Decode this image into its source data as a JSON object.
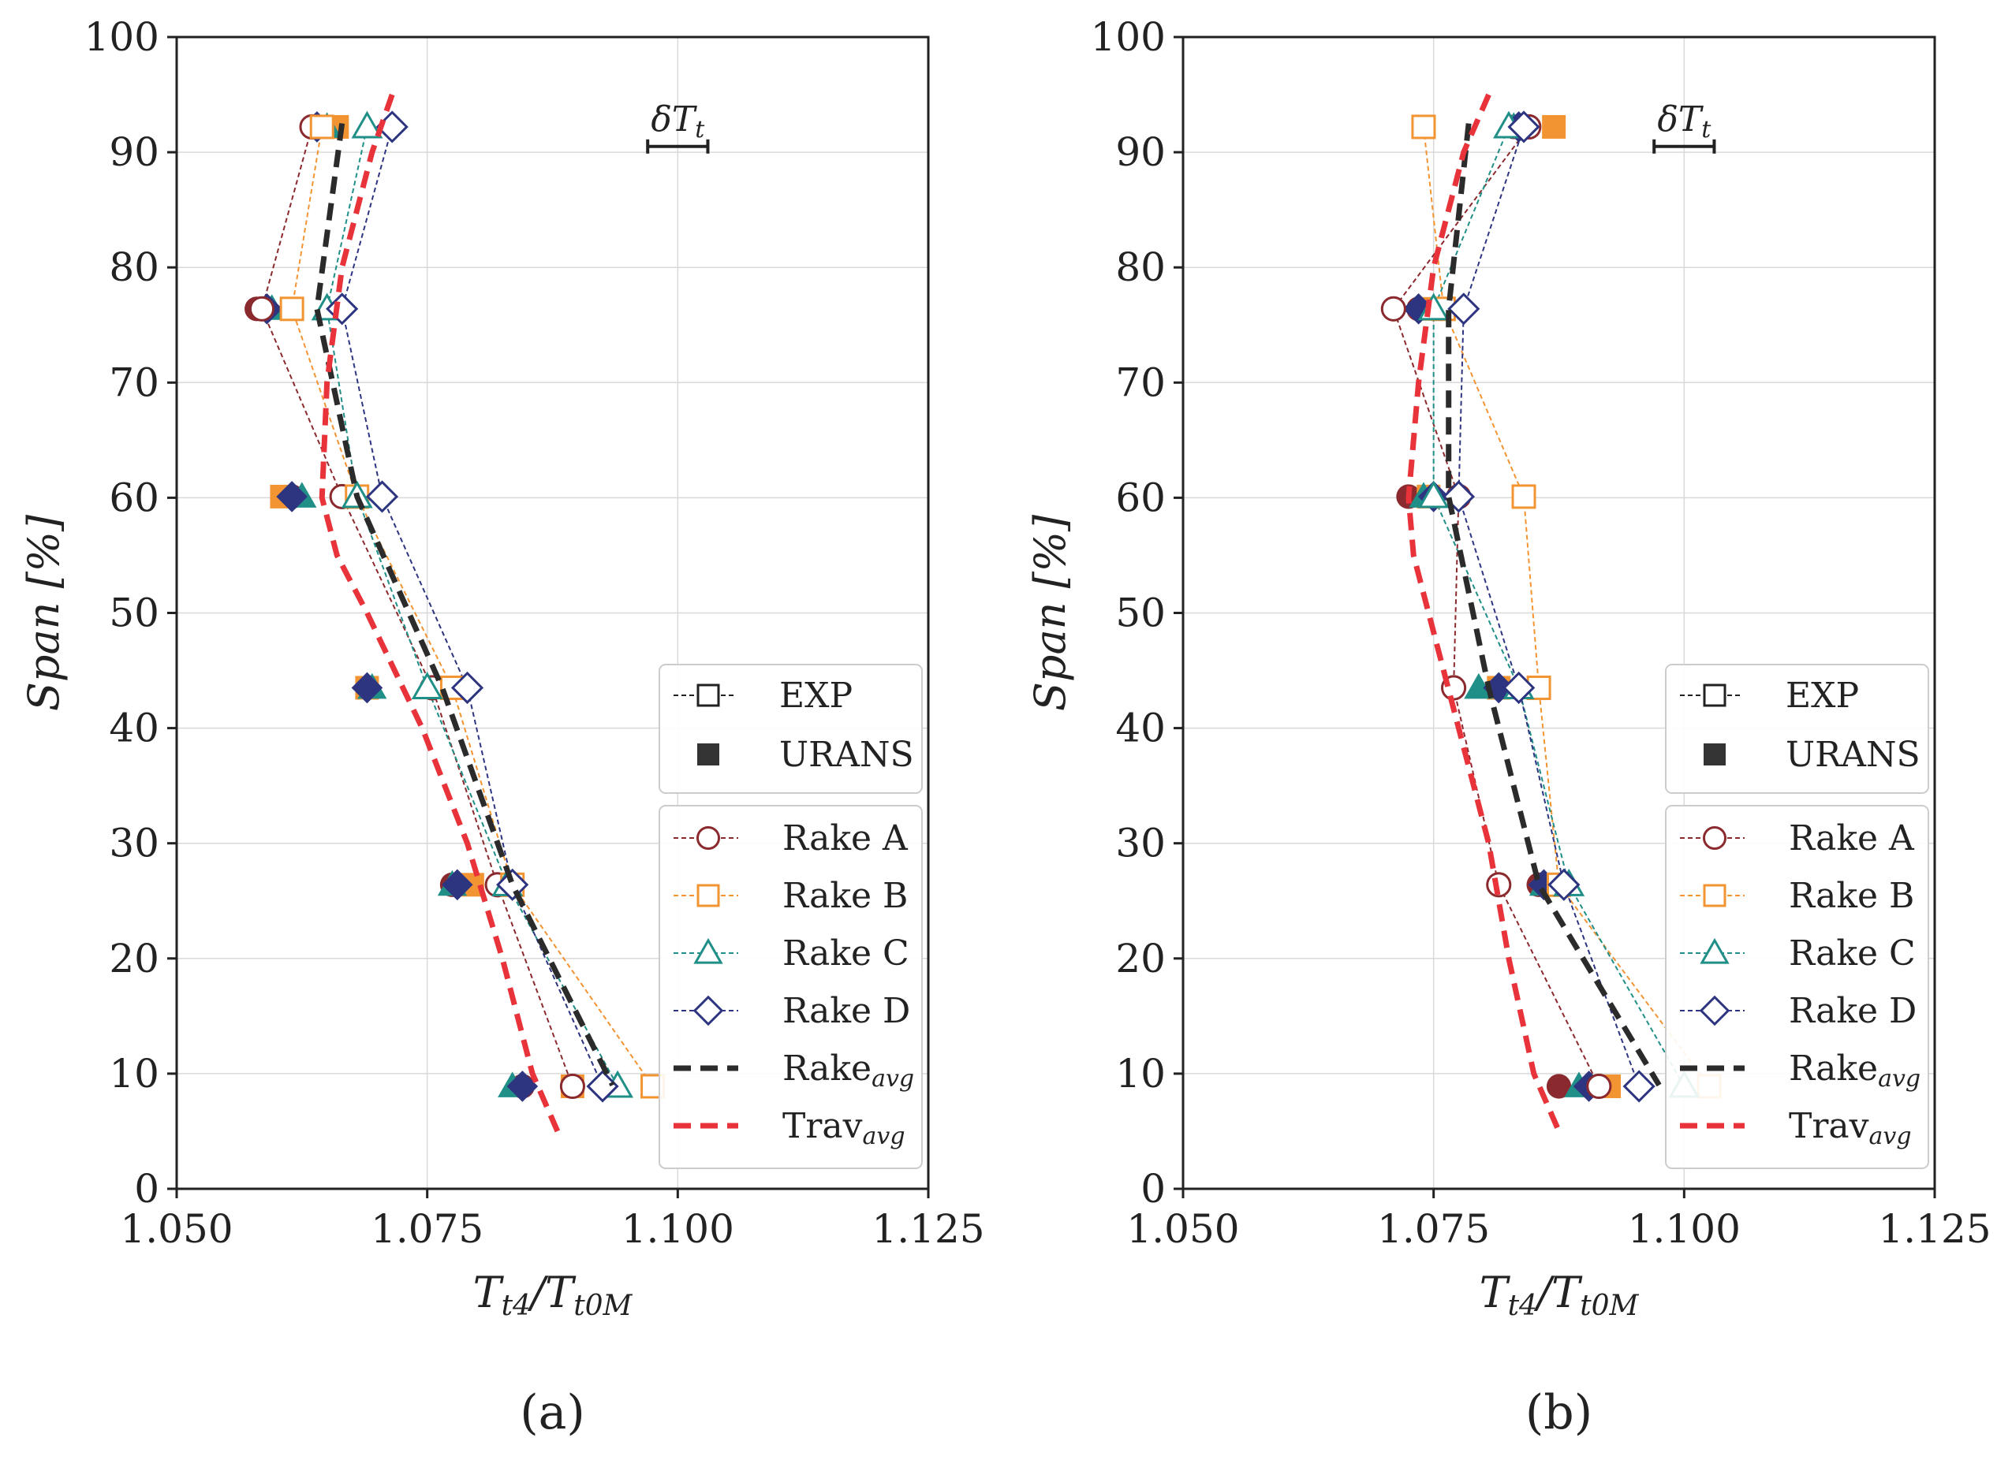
{
  "chart_data": [
    {
      "type": "line",
      "panel_label": "(a)",
      "xlabel": "T_t4 / T_t0M",
      "xlabel_main": "T",
      "xlabel_sub1": "t4",
      "xlabel_slash": "/T",
      "xlabel_sub2": "t0M",
      "ylabel": "Span [%]",
      "xlim": [
        1.05,
        1.125
      ],
      "ylim": [
        0,
        100
      ],
      "xticks": [
        "1.050",
        "1.075",
        "1.100",
        "1.125"
      ],
      "yticks": [
        "0",
        "10",
        "20",
        "30",
        "40",
        "50",
        "60",
        "70",
        "80",
        "90",
        "100"
      ],
      "grid": true,
      "uncertainty_label": "δT",
      "uncertainty_sub": "t",
      "uncertainty_bar": {
        "x_center": 1.1,
        "y": 90.5,
        "half_width": 0.003
      },
      "legend_style": {
        "exp": "EXP",
        "urans": "URANS"
      },
      "legend_series": [
        {
          "name": "Rake A",
          "label": "Rake A",
          "color": "#8b2a2e"
        },
        {
          "name": "Rake B",
          "label": "Rake B",
          "color": "#f39433"
        },
        {
          "name": "Rake C",
          "label": "Rake C",
          "color": "#1f8f88"
        },
        {
          "name": "Rake D",
          "label": "Rake D",
          "color": "#2e3580"
        },
        {
          "name": "Rake_avg",
          "label": "Rake",
          "sub": "avg",
          "color": "#2b2b2b"
        },
        {
          "name": "Trav_avg",
          "label": "Trav",
          "sub": "avg",
          "color": "#e8333a"
        }
      ],
      "span": [
        92.2,
        76.4,
        60.1,
        43.5,
        26.4,
        8.9
      ],
      "exp_series": [
        {
          "name": "Rake A",
          "marker": "circle",
          "color": "#8b2a2e",
          "x": [
            1.0635,
            1.0585,
            1.0665,
            1.0755,
            1.082,
            1.0895
          ]
        },
        {
          "name": "Rake B",
          "marker": "square",
          "color": "#f39433",
          "x": [
            1.0645,
            1.0615,
            1.068,
            1.0775,
            1.0835,
            1.0975
          ]
        },
        {
          "name": "Rake C",
          "marker": "triangle",
          "color": "#1f8f88",
          "x": [
            1.069,
            1.065,
            1.068,
            1.075,
            1.083,
            1.094
          ]
        },
        {
          "name": "Rake D",
          "marker": "diamond",
          "color": "#2e3580",
          "x": [
            1.0715,
            1.0665,
            1.0705,
            1.079,
            1.0835,
            1.0925
          ]
        }
      ],
      "urans_series": [
        {
          "name": "Rake A",
          "color": "#8b2a2e",
          "x": [
            1.0635,
            1.058,
            1.0615,
            1.069,
            1.0775,
            1.0845
          ]
        },
        {
          "name": "Rake B",
          "color": "#f39433",
          "x": [
            1.066,
            1.0615,
            1.0605,
            1.069,
            1.0795,
            1.0895
          ]
        },
        {
          "name": "Rake C",
          "color": "#1f8f88",
          "x": [
            1.065,
            1.0595,
            1.0625,
            1.0695,
            1.0775,
            1.0835
          ]
        },
        {
          "name": "Rake D",
          "color": "#2e3580",
          "x": [
            1.064,
            1.059,
            1.0615,
            1.069,
            1.078,
            1.0845
          ]
        }
      ],
      "rake_avg": {
        "x": [
          1.0665,
          1.064,
          1.068,
          1.0765,
          1.0835,
          1.0935
        ],
        "span": [
          92.5,
          76.4,
          60.1,
          43.5,
          26.4,
          9.0
        ]
      },
      "trav_avg": {
        "x": [
          1.0715,
          1.0695,
          1.0665,
          1.065,
          1.0645,
          1.066,
          1.069,
          1.0745,
          1.079,
          1.0825,
          1.0855,
          1.088
        ],
        "span": [
          95,
          90,
          80,
          70,
          60,
          55,
          50,
          40,
          30,
          20,
          10,
          5
        ]
      }
    },
    {
      "type": "line",
      "panel_label": "(b)",
      "xlabel": "T_t4 / T_t0M",
      "xlabel_main": "T",
      "xlabel_sub1": "t4",
      "xlabel_slash": "/T",
      "xlabel_sub2": "t0M",
      "ylabel": "Span [%]",
      "xlim": [
        1.05,
        1.125
      ],
      "ylim": [
        0,
        100
      ],
      "xticks": [
        "1.050",
        "1.075",
        "1.100",
        "1.125"
      ],
      "yticks": [
        "0",
        "10",
        "20",
        "30",
        "40",
        "50",
        "60",
        "70",
        "80",
        "90",
        "100"
      ],
      "grid": true,
      "uncertainty_label": "δT",
      "uncertainty_sub": "t",
      "uncertainty_bar": {
        "x_center": 1.1,
        "y": 90.5,
        "half_width": 0.003
      },
      "legend_style": {
        "exp": "EXP",
        "urans": "URANS"
      },
      "legend_series": [
        {
          "name": "Rake A",
          "label": "Rake A",
          "color": "#8b2a2e"
        },
        {
          "name": "Rake B",
          "label": "Rake B",
          "color": "#f39433"
        },
        {
          "name": "Rake C",
          "label": "Rake C",
          "color": "#1f8f88"
        },
        {
          "name": "Rake D",
          "label": "Rake D",
          "color": "#2e3580"
        },
        {
          "name": "Rake_avg",
          "label": "Rake",
          "sub": "avg",
          "color": "#2b2b2b"
        },
        {
          "name": "Trav_avg",
          "label": "Trav",
          "sub": "avg",
          "color": "#e8333a"
        }
      ],
      "span": [
        92.2,
        76.4,
        60.1,
        43.5,
        26.4,
        8.9
      ],
      "exp_series": [
        {
          "name": "Rake A",
          "marker": "circle",
          "color": "#8b2a2e",
          "x": [
            1.0845,
            1.071,
            1.0775,
            1.077,
            1.0815,
            1.0915
          ]
        },
        {
          "name": "Rake B",
          "marker": "square",
          "color": "#f39433",
          "x": [
            1.074,
            1.076,
            1.084,
            1.0855,
            1.0875,
            1.1025
          ]
        },
        {
          "name": "Rake C",
          "marker": "triangle",
          "color": "#1f8f88",
          "x": [
            1.0825,
            1.075,
            1.075,
            1.0835,
            1.0885,
            1.1
          ]
        },
        {
          "name": "Rake D",
          "marker": "diamond",
          "color": "#2e3580",
          "x": [
            1.084,
            1.078,
            1.0775,
            1.0835,
            1.088,
            1.0955
          ]
        }
      ],
      "urans_series": [
        {
          "name": "Rake A",
          "color": "#8b2a2e",
          "x": [
            1.083,
            1.0735,
            1.0725,
            1.0815,
            1.0855,
            1.0875
          ]
        },
        {
          "name": "Rake B",
          "color": "#f39433",
          "x": [
            1.087,
            1.0745,
            1.0745,
            1.0815,
            1.087,
            1.0925
          ]
        },
        {
          "name": "Rake C",
          "color": "#1f8f88",
          "x": [
            1.083,
            1.075,
            1.074,
            1.0795,
            1.086,
            1.0895
          ]
        },
        {
          "name": "Rake D",
          "color": "#2e3580",
          "x": [
            1.0835,
            1.0735,
            1.075,
            1.0815,
            1.086,
            1.0905
          ]
        }
      ],
      "rake_avg": {
        "x": [
          1.0785,
          1.0765,
          1.0765,
          1.0805,
          1.0855,
          1.0975
        ],
        "span": [
          92.5,
          76.4,
          60.1,
          43.5,
          26.4,
          9.0
        ]
      },
      "trav_avg": {
        "x": [
          1.0805,
          1.078,
          1.075,
          1.0735,
          1.0725,
          1.073,
          1.0745,
          1.0775,
          1.0805,
          1.0825,
          1.085,
          1.0875
        ],
        "span": [
          95,
          90,
          80,
          70,
          60,
          55,
          50,
          40,
          30,
          20,
          10,
          5
        ]
      }
    }
  ]
}
